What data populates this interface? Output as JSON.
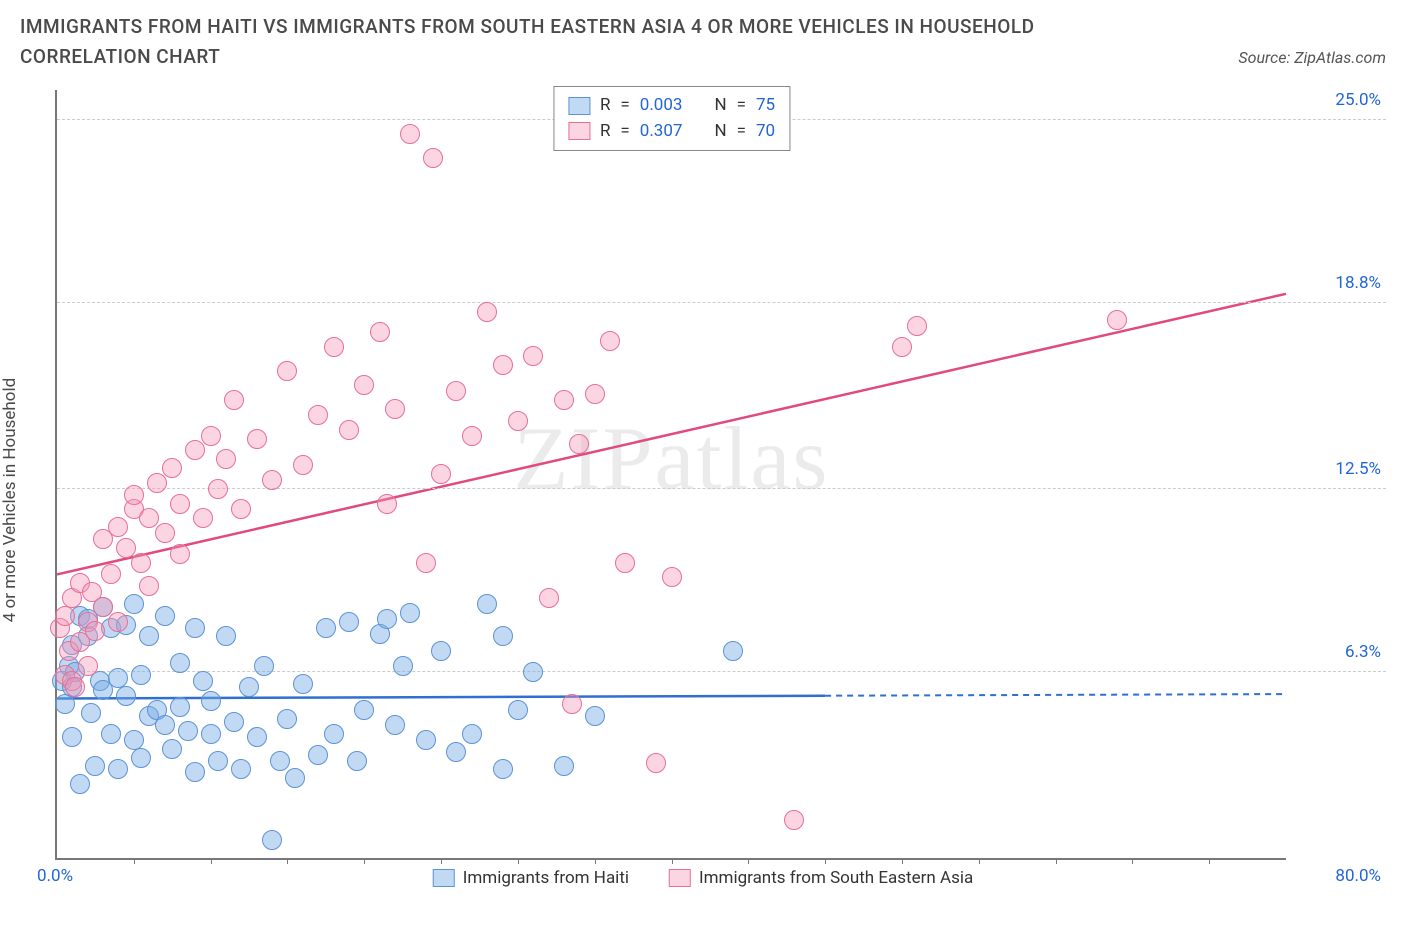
{
  "title": "IMMIGRANTS FROM HAITI VS IMMIGRANTS FROM SOUTH EASTERN ASIA 4 OR MORE VEHICLES IN HOUSEHOLD CORRELATION CHART",
  "source_label": "Source: ZipAtlas.com",
  "y_axis_label": "4 or more Vehicles in Household",
  "watermark_a": "ZIP",
  "watermark_b": "atlas",
  "chart": {
    "type": "scatter",
    "xlim": [
      0,
      80
    ],
    "ylim": [
      0,
      26
    ],
    "x_ticks_minor": [
      5,
      10,
      15,
      20,
      25,
      30,
      35,
      40,
      45,
      50,
      55,
      60,
      65,
      70,
      75
    ],
    "x_tick_labels": [
      {
        "v": 0,
        "label": "0.0%"
      },
      {
        "v": 80,
        "label": "80.0%"
      }
    ],
    "y_gridlines": [
      {
        "v": 6.3,
        "label": "6.3%"
      },
      {
        "v": 12.5,
        "label": "12.5%"
      },
      {
        "v": 18.8,
        "label": "18.8%"
      },
      {
        "v": 25.0,
        "label": "25.0%"
      }
    ],
    "background_color": "#ffffff",
    "grid_color": "#cccccc",
    "axis_color": "#777777",
    "right_label_color": "#2166d6"
  },
  "series": [
    {
      "id": "haiti",
      "label": "Immigrants from Haiti",
      "fill": "rgba(120,170,230,0.45)",
      "stroke": "#5c94d6",
      "line_color": "#2f6fd0",
      "stats": {
        "R_label": "R",
        "R": "0.003",
        "N_label": "N",
        "N": "75"
      },
      "regression": {
        "x1": 0,
        "y1": 5.4,
        "x2": 80,
        "y2": 5.55,
        "solid_until_x": 50
      },
      "radius": 10,
      "points": [
        [
          0.3,
          6.0
        ],
        [
          0.5,
          5.2
        ],
        [
          0.8,
          6.5
        ],
        [
          1.0,
          7.2
        ],
        [
          1.0,
          5.8
        ],
        [
          1.0,
          4.1
        ],
        [
          1.2,
          6.3
        ],
        [
          1.5,
          8.2
        ],
        [
          1.5,
          2.5
        ],
        [
          2.0,
          7.5
        ],
        [
          2.0,
          8.1
        ],
        [
          2.2,
          4.9
        ],
        [
          2.5,
          3.1
        ],
        [
          2.8,
          6.0
        ],
        [
          3.0,
          8.5
        ],
        [
          3.0,
          5.7
        ],
        [
          3.5,
          7.8
        ],
        [
          3.5,
          4.2
        ],
        [
          4.0,
          3.0
        ],
        [
          4.0,
          6.1
        ],
        [
          4.5,
          7.9
        ],
        [
          4.5,
          5.5
        ],
        [
          5.0,
          8.6
        ],
        [
          5.0,
          4.0
        ],
        [
          5.5,
          3.4
        ],
        [
          5.5,
          6.2
        ],
        [
          6.0,
          4.8
        ],
        [
          6.0,
          7.5
        ],
        [
          6.5,
          5.0
        ],
        [
          7.0,
          8.2
        ],
        [
          7.0,
          4.5
        ],
        [
          7.5,
          3.7
        ],
        [
          8.0,
          6.6
        ],
        [
          8.0,
          5.1
        ],
        [
          8.5,
          4.3
        ],
        [
          9.0,
          7.8
        ],
        [
          9.0,
          2.9
        ],
        [
          9.5,
          6.0
        ],
        [
          10.0,
          4.2
        ],
        [
          10.0,
          5.3
        ],
        [
          10.5,
          3.3
        ],
        [
          11.0,
          7.5
        ],
        [
          11.5,
          4.6
        ],
        [
          12.0,
          3.0
        ],
        [
          12.5,
          5.8
        ],
        [
          13.0,
          4.1
        ],
        [
          13.5,
          6.5
        ],
        [
          14.0,
          0.6
        ],
        [
          14.5,
          3.3
        ],
        [
          15.0,
          4.7
        ],
        [
          15.5,
          2.7
        ],
        [
          16.0,
          5.9
        ],
        [
          17.0,
          3.5
        ],
        [
          17.5,
          7.8
        ],
        [
          18.0,
          4.2
        ],
        [
          19.0,
          8.0
        ],
        [
          19.5,
          3.3
        ],
        [
          20.0,
          5.0
        ],
        [
          21.0,
          7.6
        ],
        [
          21.5,
          8.1
        ],
        [
          22.0,
          4.5
        ],
        [
          22.5,
          6.5
        ],
        [
          23.0,
          8.3
        ],
        [
          24.0,
          4.0
        ],
        [
          25.0,
          7.0
        ],
        [
          26.0,
          3.6
        ],
        [
          27.0,
          4.2
        ],
        [
          28.0,
          8.6
        ],
        [
          29.0,
          3.0
        ],
        [
          29.0,
          7.5
        ],
        [
          30.0,
          5.0
        ],
        [
          31.0,
          6.3
        ],
        [
          33.0,
          3.1
        ],
        [
          35.0,
          4.8
        ],
        [
          44.0,
          7.0
        ]
      ]
    },
    {
      "id": "sea",
      "label": "Immigrants from South Eastern Asia",
      "fill": "rgba(244,150,180,0.40)",
      "stroke": "#e86f98",
      "line_color": "#e04a7d",
      "stats": {
        "R_label": "R",
        "R": "0.307",
        "N_label": "N",
        "N": "70"
      },
      "regression": {
        "x1": 0,
        "y1": 9.6,
        "x2": 80,
        "y2": 19.1,
        "solid_until_x": 80
      },
      "radius": 10,
      "points": [
        [
          0.2,
          7.8
        ],
        [
          0.5,
          6.2
        ],
        [
          0.5,
          8.2
        ],
        [
          0.8,
          7.0
        ],
        [
          1.0,
          6.0
        ],
        [
          1.0,
          8.8
        ],
        [
          1.2,
          5.8
        ],
        [
          1.5,
          7.3
        ],
        [
          1.5,
          9.3
        ],
        [
          2.0,
          8.0
        ],
        [
          2.0,
          6.5
        ],
        [
          2.3,
          9.0
        ],
        [
          2.5,
          7.7
        ],
        [
          3.0,
          10.8
        ],
        [
          3.0,
          8.5
        ],
        [
          3.5,
          9.6
        ],
        [
          4.0,
          11.2
        ],
        [
          4.0,
          8.0
        ],
        [
          4.5,
          10.5
        ],
        [
          5.0,
          11.8
        ],
        [
          5.0,
          12.3
        ],
        [
          5.5,
          10.0
        ],
        [
          6.0,
          11.5
        ],
        [
          6.0,
          9.2
        ],
        [
          6.5,
          12.7
        ],
        [
          7.0,
          11.0
        ],
        [
          7.5,
          13.2
        ],
        [
          8.0,
          12.0
        ],
        [
          8.0,
          10.3
        ],
        [
          9.0,
          13.8
        ],
        [
          9.5,
          11.5
        ],
        [
          10.0,
          14.3
        ],
        [
          10.5,
          12.5
        ],
        [
          11.0,
          13.5
        ],
        [
          11.5,
          15.5
        ],
        [
          12.0,
          11.8
        ],
        [
          13.0,
          14.2
        ],
        [
          14.0,
          12.8
        ],
        [
          15.0,
          16.5
        ],
        [
          16.0,
          13.3
        ],
        [
          17.0,
          15.0
        ],
        [
          18.0,
          17.3
        ],
        [
          19.0,
          14.5
        ],
        [
          20.0,
          16.0
        ],
        [
          21.0,
          17.8
        ],
        [
          21.5,
          12.0
        ],
        [
          22.0,
          15.2
        ],
        [
          23.0,
          24.5
        ],
        [
          24.0,
          10.0
        ],
        [
          24.5,
          23.7
        ],
        [
          25.0,
          13.0
        ],
        [
          26.0,
          15.8
        ],
        [
          27.0,
          14.3
        ],
        [
          28.0,
          18.5
        ],
        [
          29.0,
          16.7
        ],
        [
          30.0,
          14.8
        ],
        [
          31.0,
          17.0
        ],
        [
          32.0,
          8.8
        ],
        [
          33.0,
          15.5
        ],
        [
          33.5,
          5.2
        ],
        [
          34.0,
          14.0
        ],
        [
          35.0,
          15.7
        ],
        [
          36.0,
          17.5
        ],
        [
          37.0,
          10.0
        ],
        [
          39.0,
          3.2
        ],
        [
          40.0,
          9.5
        ],
        [
          48.0,
          1.3
        ],
        [
          55.0,
          17.3
        ],
        [
          56.0,
          18.0
        ],
        [
          69.0,
          18.2
        ]
      ]
    }
  ]
}
